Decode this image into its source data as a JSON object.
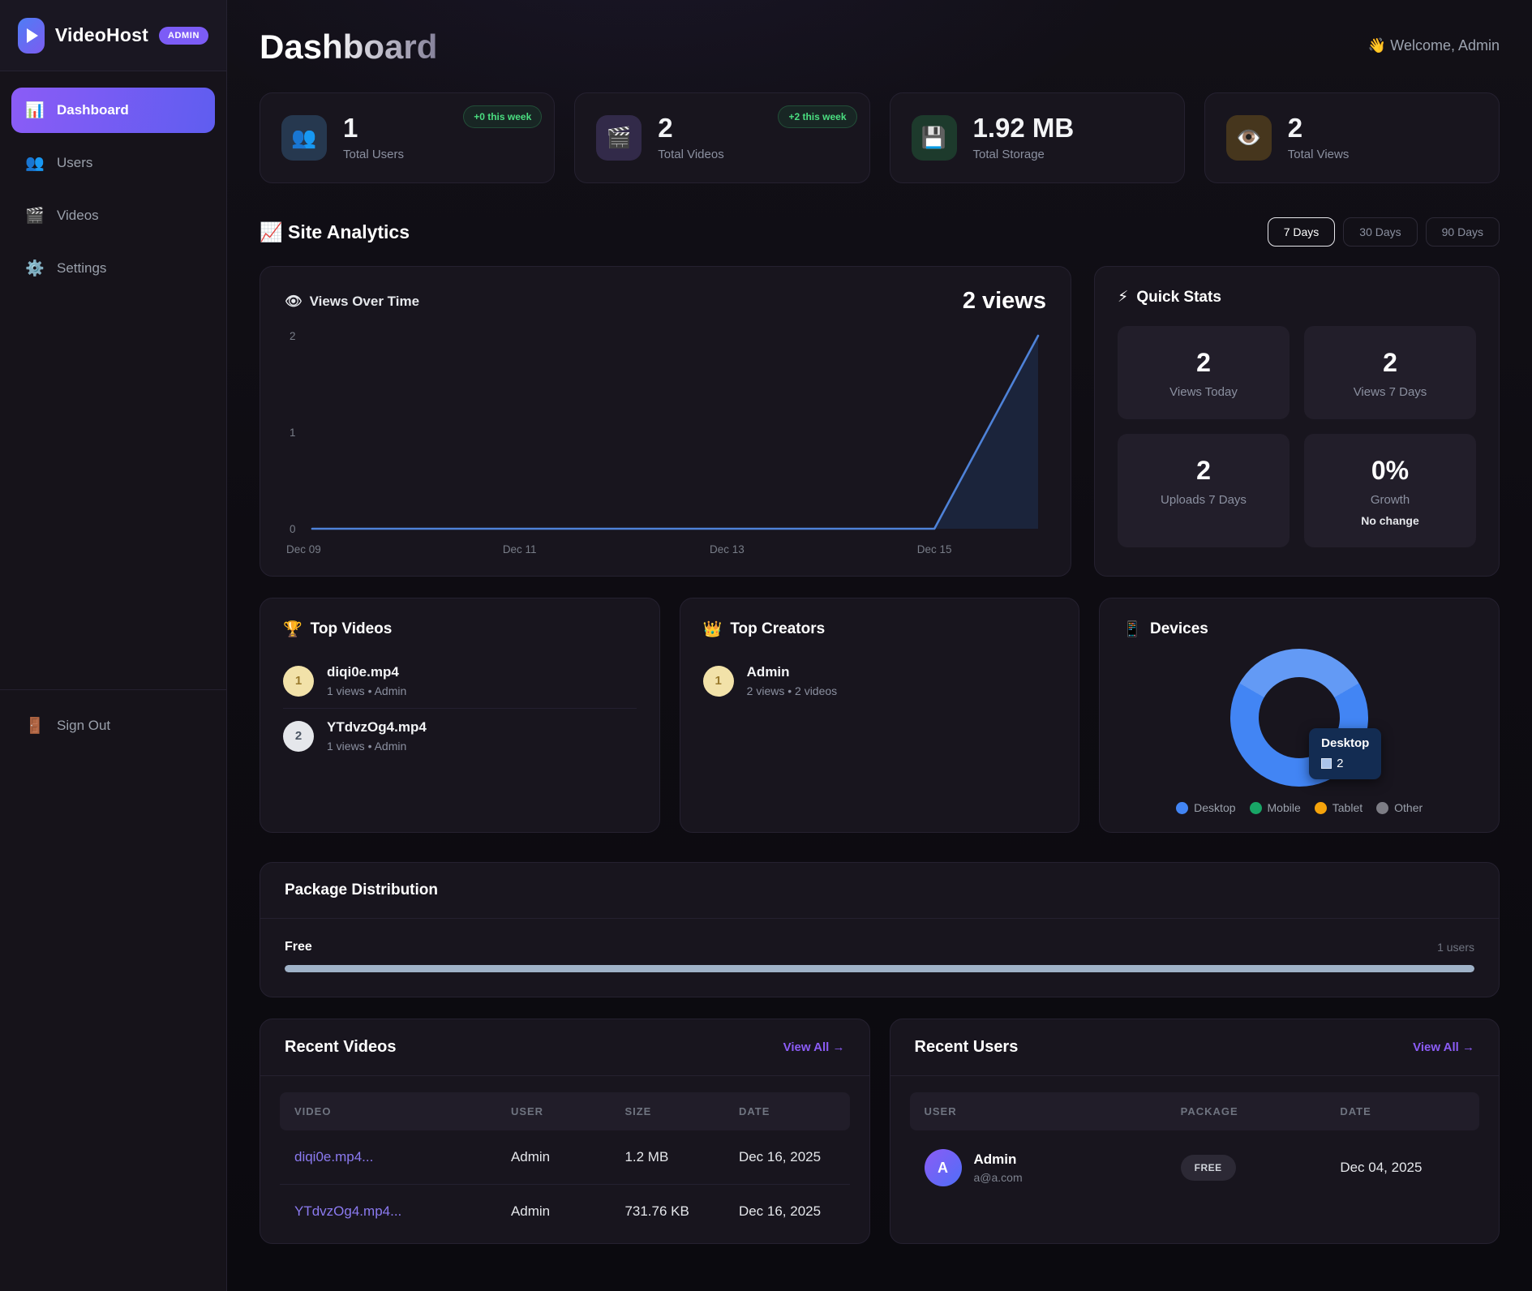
{
  "app": {
    "name": "VideoHost",
    "badge": "ADMIN"
  },
  "sidebar": {
    "nav": [
      {
        "label": "Dashboard",
        "icon": "📊",
        "active": true
      },
      {
        "label": "Users",
        "icon": "👥",
        "active": false
      },
      {
        "label": "Videos",
        "icon": "🎬",
        "active": false
      },
      {
        "label": "Settings",
        "icon": "⚙️",
        "active": false
      }
    ],
    "sign_out": {
      "label": "Sign Out",
      "icon": "🚪"
    }
  },
  "header": {
    "title": "Dashboard",
    "welcome_icon": "👋",
    "welcome": "Welcome, Admin"
  },
  "stats": [
    {
      "icon": "👥",
      "icon_name": "users-icon",
      "value": "1",
      "label": "Total Users",
      "badge": "+0 this week"
    },
    {
      "icon": "🎬",
      "icon_name": "clapperboard-icon",
      "value": "2",
      "label": "Total Videos",
      "badge": "+2 this week"
    },
    {
      "icon": "💾",
      "icon_name": "floppy-disk-icon",
      "value": "1.92 MB",
      "label": "Total Storage"
    },
    {
      "icon": "👁️",
      "icon_name": "eye-icon",
      "value": "2",
      "label": "Total Views"
    }
  ],
  "analytics": {
    "icon": "📈",
    "title": "Site Analytics",
    "ranges": [
      {
        "label": "7 Days",
        "active": true
      },
      {
        "label": "30 Days",
        "active": false
      },
      {
        "label": "90 Days",
        "active": false
      }
    ],
    "views_chart": {
      "icon": "👁",
      "title": "Views Over Time",
      "total": "2 views",
      "chart_data": {
        "type": "area",
        "x": [
          "Dec 09",
          "Dec 10",
          "Dec 11",
          "Dec 12",
          "Dec 13",
          "Dec 14",
          "Dec 15",
          "Dec 16"
        ],
        "y": [
          0,
          0,
          0,
          0,
          0,
          0,
          0,
          2
        ],
        "x_ticks": [
          "Dec 09",
          "Dec 11",
          "Dec 13",
          "Dec 15"
        ],
        "y_ticks": [
          0,
          1,
          2
        ],
        "ylim": [
          0,
          2
        ],
        "grid": false,
        "legend": false,
        "line_color": "#4e82d8",
        "area_color": "rgba(46,104,196,0.18)"
      }
    },
    "quick_stats": {
      "icon": "⚡",
      "title": "Quick Stats",
      "tiles": [
        {
          "value": "2",
          "label": "Views Today"
        },
        {
          "value": "2",
          "label": "Views 7 Days"
        },
        {
          "value": "2",
          "label": "Uploads 7 Days"
        },
        {
          "value": "0%",
          "label": "Growth",
          "sub": "No change"
        }
      ]
    }
  },
  "top_videos": {
    "icon": "🏆",
    "title": "Top Videos",
    "items": [
      {
        "rank": "1",
        "name": "diqi0e.mp4",
        "meta": "1 views • Admin"
      },
      {
        "rank": "2",
        "name": "YTdvzOg4.mp4",
        "meta": "1 views • Admin"
      }
    ]
  },
  "top_creators": {
    "icon": "👑",
    "title": "Top Creators",
    "items": [
      {
        "rank": "1",
        "name": "Admin",
        "meta": "2 views • 2 videos"
      }
    ]
  },
  "devices": {
    "icon": "📱",
    "title": "Devices",
    "tooltip": {
      "label": "Desktop",
      "value": "2"
    },
    "chart_data": {
      "type": "pie",
      "donut": true,
      "labels": [
        "Desktop",
        "Mobile",
        "Tablet",
        "Other"
      ],
      "values": [
        2,
        0,
        0,
        0
      ],
      "colors": [
        "#4285f4",
        "#18a566",
        "#f5a30b",
        "#7d7d85"
      ],
      "highlight": {
        "color": "#639af5",
        "from_deg": 300,
        "to_deg": 60
      },
      "legend_position": "bottom"
    }
  },
  "package_distribution": {
    "title": "Package Distribution",
    "rows": [
      {
        "name": "Free",
        "users": "1 users",
        "percent": 100,
        "bar_color": "#9fb2c8"
      }
    ]
  },
  "recent_videos": {
    "title": "Recent Videos",
    "view_all": "View All →",
    "columns": [
      "VIDEO",
      "USER",
      "SIZE",
      "DATE"
    ],
    "rows": [
      {
        "video": "diqi0e.mp4...",
        "user": "Admin",
        "size": "1.2 MB",
        "date": "Dec 16, 2025"
      },
      {
        "video": "YTdvzOg4.mp4...",
        "user": "Admin",
        "size": "731.76 KB",
        "date": "Dec 16, 2025"
      }
    ]
  },
  "recent_users": {
    "title": "Recent Users",
    "view_all": "View All →",
    "columns": [
      "USER",
      "PACKAGE",
      "DATE"
    ],
    "rows": [
      {
        "avatar": "A",
        "name": "Admin",
        "email": "a@a.com",
        "package": "FREE",
        "date": "Dec 04, 2025"
      }
    ]
  },
  "colors": {
    "accent": "#7c5cf6",
    "link": "#8b7af0",
    "positive": "#4ade80",
    "chart_blue": "#4e82d8"
  }
}
